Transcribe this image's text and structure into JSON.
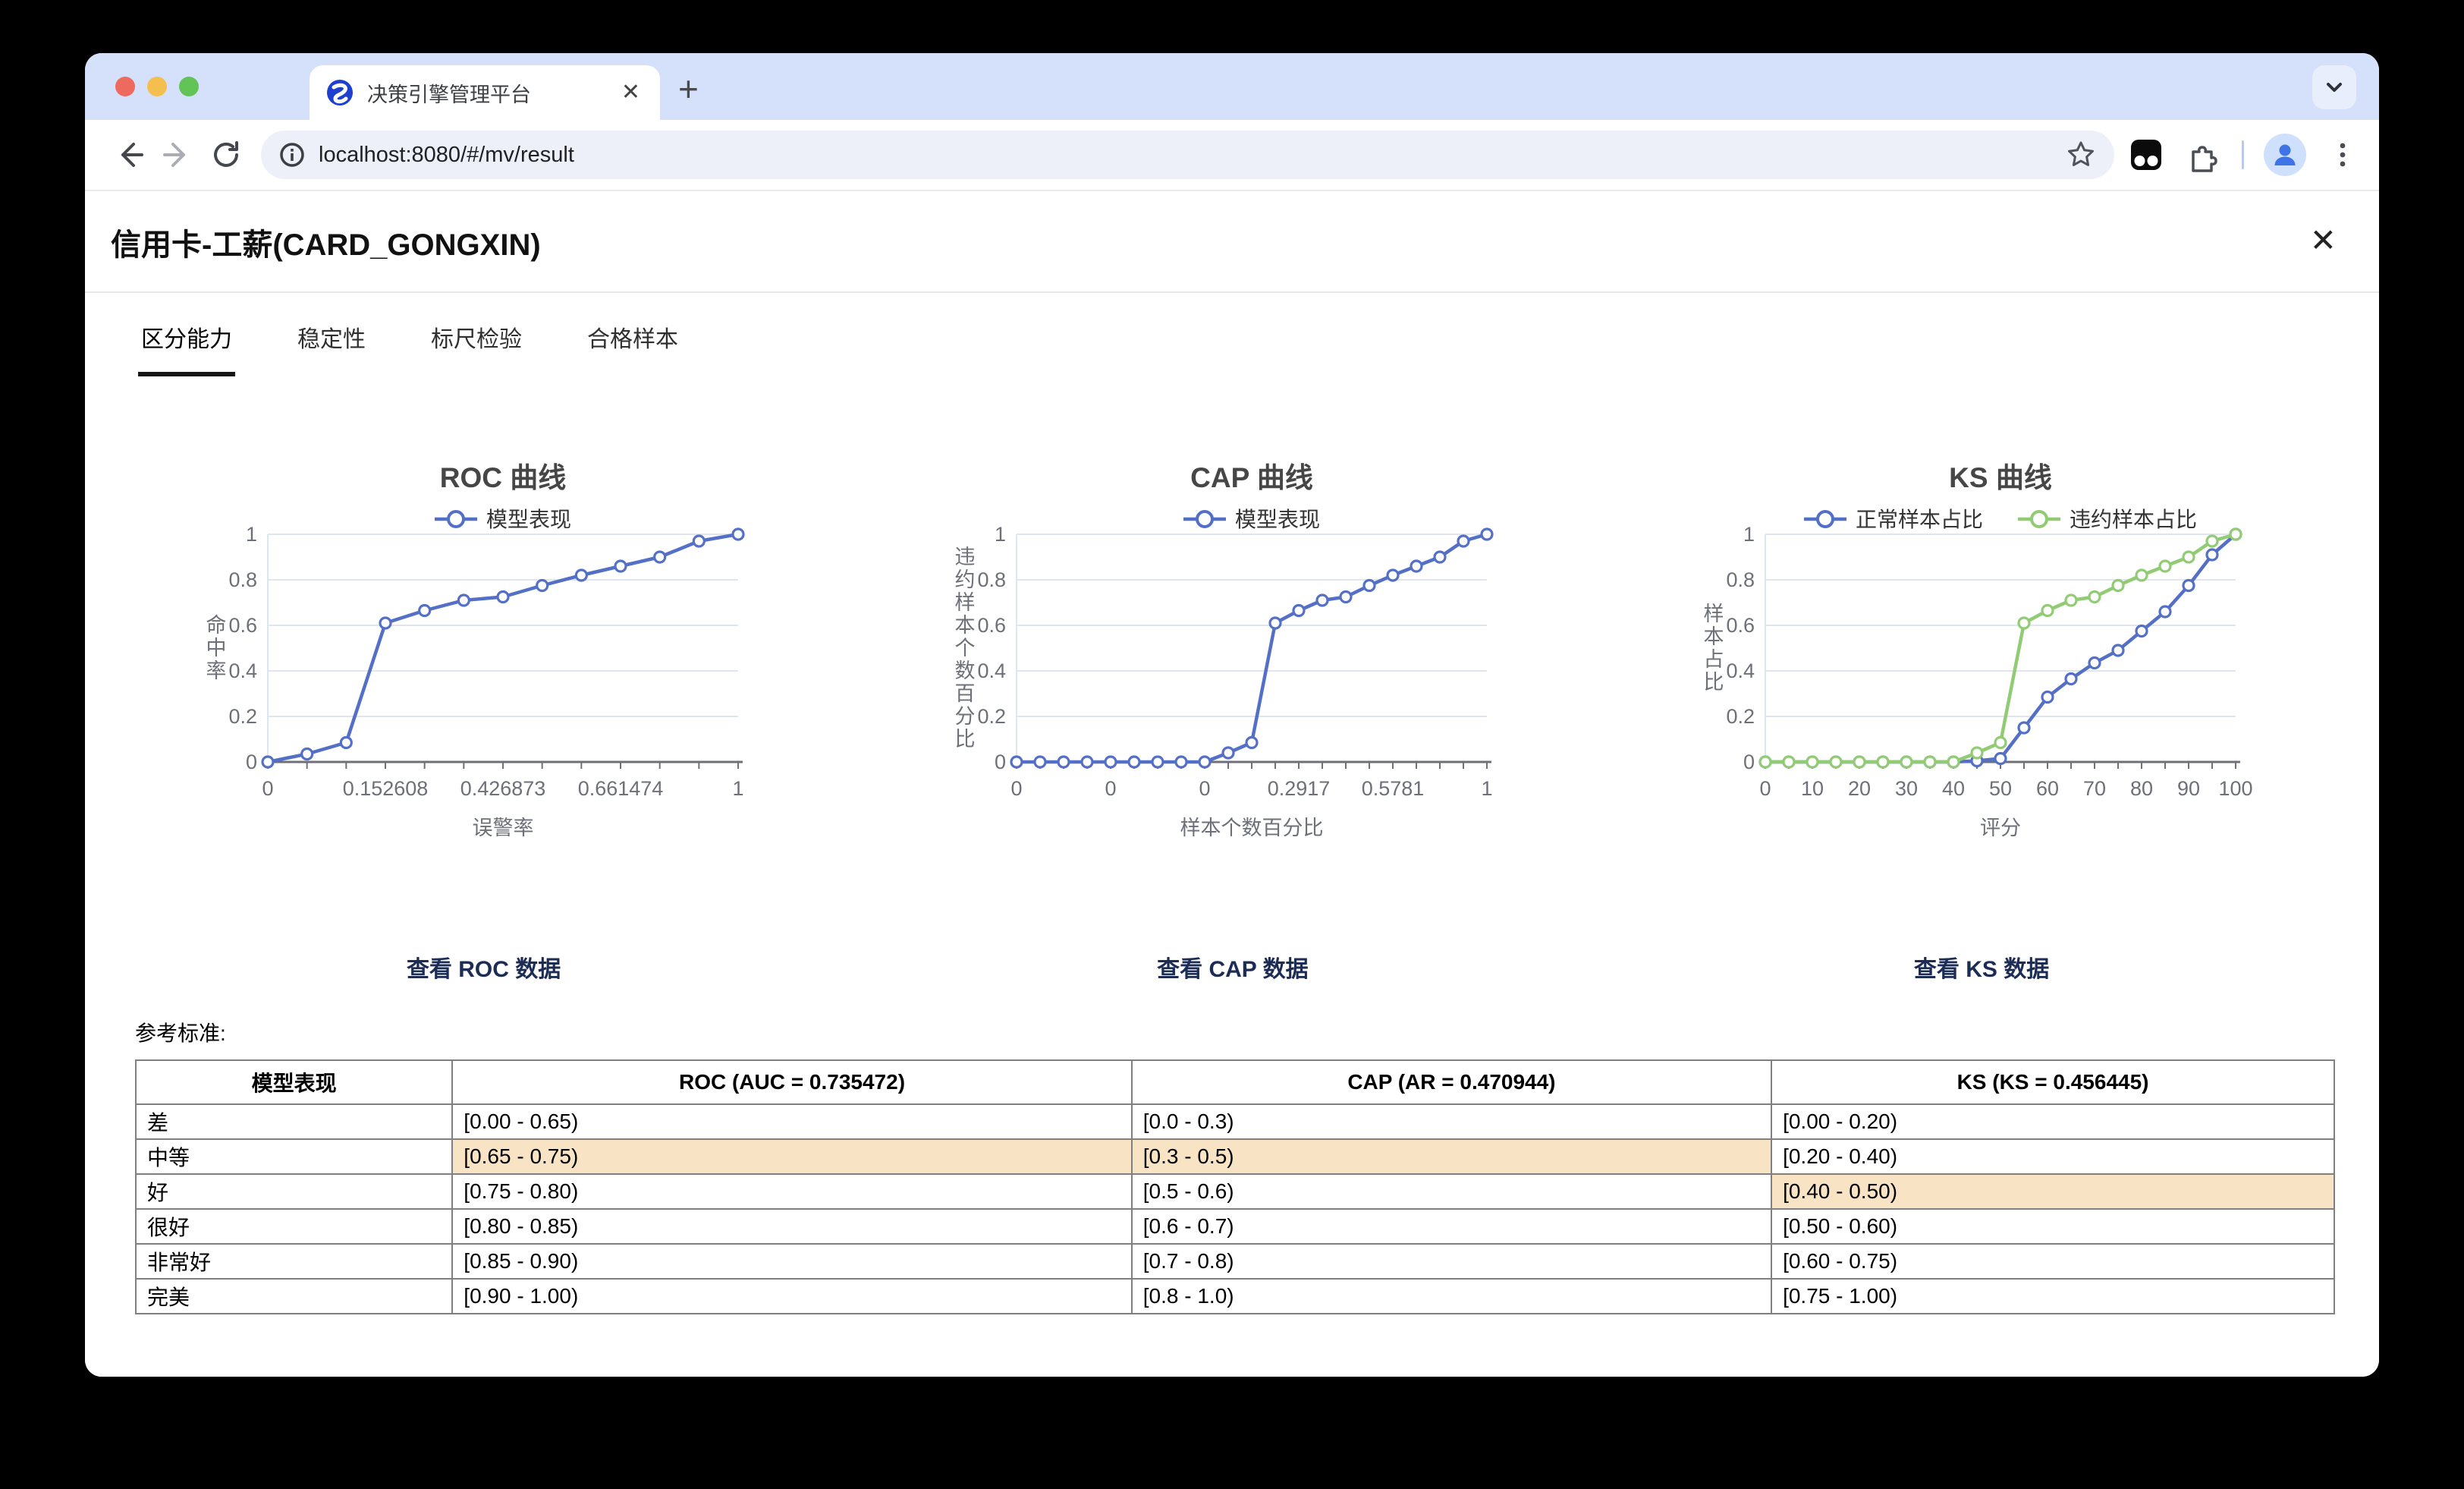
{
  "browser": {
    "traffic_lights": {
      "close": "#ee6a5f",
      "minimize": "#f5bf4f",
      "zoom": "#62c456"
    },
    "tab": {
      "title": "决策引擎管理平台",
      "close_glyph": "✕"
    },
    "new_tab_glyph": "+",
    "url": "localhost:8080/#/mv/result"
  },
  "page": {
    "title": "信用卡-工薪(CARD_GONGXIN)",
    "close_glyph": "✕",
    "nav_tabs": [
      {
        "label": "区分能力",
        "active": true
      },
      {
        "label": "稳定性",
        "active": false
      },
      {
        "label": "标尺检验",
        "active": false
      },
      {
        "label": "合格样本",
        "active": false
      }
    ],
    "links": [
      "查看 ROC 数据",
      "查看 CAP 数据",
      "查看 KS 数据"
    ],
    "reference_label": "参考标准:"
  },
  "chart_data": [
    {
      "type": "line",
      "title": "ROC 曲线",
      "xlabel": "误警率",
      "ylabel": "命中率",
      "ylim": [
        0,
        1
      ],
      "y_ticks": [
        0,
        0.2,
        0.4,
        0.6,
        0.8,
        1
      ],
      "n_points": 13,
      "x_label_every": 3,
      "x_tick_labels": [
        "0",
        "0.152608",
        "0.426873",
        "0.661474",
        "1"
      ],
      "grid": true,
      "legend_position": "top",
      "series": [
        {
          "name": "模型表现",
          "color": "#5470c6",
          "values": [
            0,
            0.035,
            0.085,
            0.61,
            0.665,
            0.71,
            0.725,
            0.775,
            0.82,
            0.86,
            0.9,
            0.97,
            1
          ]
        }
      ]
    },
    {
      "type": "line",
      "title": "CAP 曲线",
      "xlabel": "样本个数百分比",
      "ylabel": "违约样本个数百分比",
      "ylim": [
        0,
        1
      ],
      "y_ticks": [
        0,
        0.2,
        0.4,
        0.6,
        0.8,
        1
      ],
      "n_points": 21,
      "x_label_every": 4,
      "x_tick_labels": [
        "0",
        "0",
        "0",
        "0.2917",
        "0.5781",
        "1"
      ],
      "grid": true,
      "legend_position": "top",
      "series": [
        {
          "name": "模型表现",
          "color": "#5470c6",
          "values": [
            0,
            0,
            0,
            0,
            0,
            0,
            0,
            0,
            0,
            0.04,
            0.085,
            0.61,
            0.665,
            0.71,
            0.725,
            0.775,
            0.82,
            0.86,
            0.9,
            0.97,
            1
          ]
        }
      ]
    },
    {
      "type": "line",
      "title": "KS 曲线",
      "xlabel": "评分",
      "ylabel": "样本占比",
      "ylim": [
        0,
        1
      ],
      "y_ticks": [
        0,
        0.2,
        0.4,
        0.6,
        0.8,
        1
      ],
      "n_points": 21,
      "x_label_every": 2,
      "x_tick_labels": [
        "0",
        "10",
        "20",
        "30",
        "40",
        "50",
        "60",
        "70",
        "80",
        "90",
        "100"
      ],
      "grid": true,
      "legend_position": "top",
      "series": [
        {
          "name": "正常样本占比",
          "color": "#5470c6",
          "values": [
            0,
            0,
            0,
            0,
            0,
            0,
            0,
            0,
            0,
            0.005,
            0.015,
            0.15,
            0.285,
            0.365,
            0.435,
            0.49,
            0.575,
            0.66,
            0.775,
            0.91,
            1
          ]
        },
        {
          "name": "违约样本占比",
          "color": "#91cc75",
          "values": [
            0,
            0,
            0,
            0,
            0,
            0,
            0,
            0,
            0,
            0.04,
            0.085,
            0.61,
            0.665,
            0.71,
            0.725,
            0.775,
            0.82,
            0.86,
            0.9,
            0.97,
            1
          ]
        }
      ]
    }
  ],
  "table": {
    "headers": [
      "模型表现",
      "ROC (AUC = 0.735472)",
      "CAP (AR = 0.470944)",
      "KS (KS = 0.456445)"
    ],
    "col_widths_pct": [
      14.4,
      30.9,
      29.1,
      25.6
    ],
    "rows": [
      [
        "差",
        "[0.00 - 0.65)",
        "[0.0 - 0.3)",
        "[0.00 - 0.20)"
      ],
      [
        "中等",
        "[0.65 - 0.75)",
        "[0.3 - 0.5)",
        "[0.20 - 0.40)"
      ],
      [
        "好",
        "[0.75 - 0.80)",
        "[0.5 - 0.6)",
        "[0.40 - 0.50)"
      ],
      [
        "很好",
        "[0.80 - 0.85)",
        "[0.6 - 0.7)",
        "[0.50 - 0.60)"
      ],
      [
        "非常好",
        "[0.85 - 0.90)",
        "[0.7 - 0.8)",
        "[0.60 - 0.75)"
      ],
      [
        "完美",
        "[0.90 - 1.00)",
        "[0.8 - 1.0)",
        "[0.75 - 1.00)"
      ]
    ],
    "highlight_cells": [
      [
        1,
        1
      ],
      [
        1,
        2
      ],
      [
        2,
        3
      ]
    ],
    "highlight_color": "#f8e3c5"
  }
}
